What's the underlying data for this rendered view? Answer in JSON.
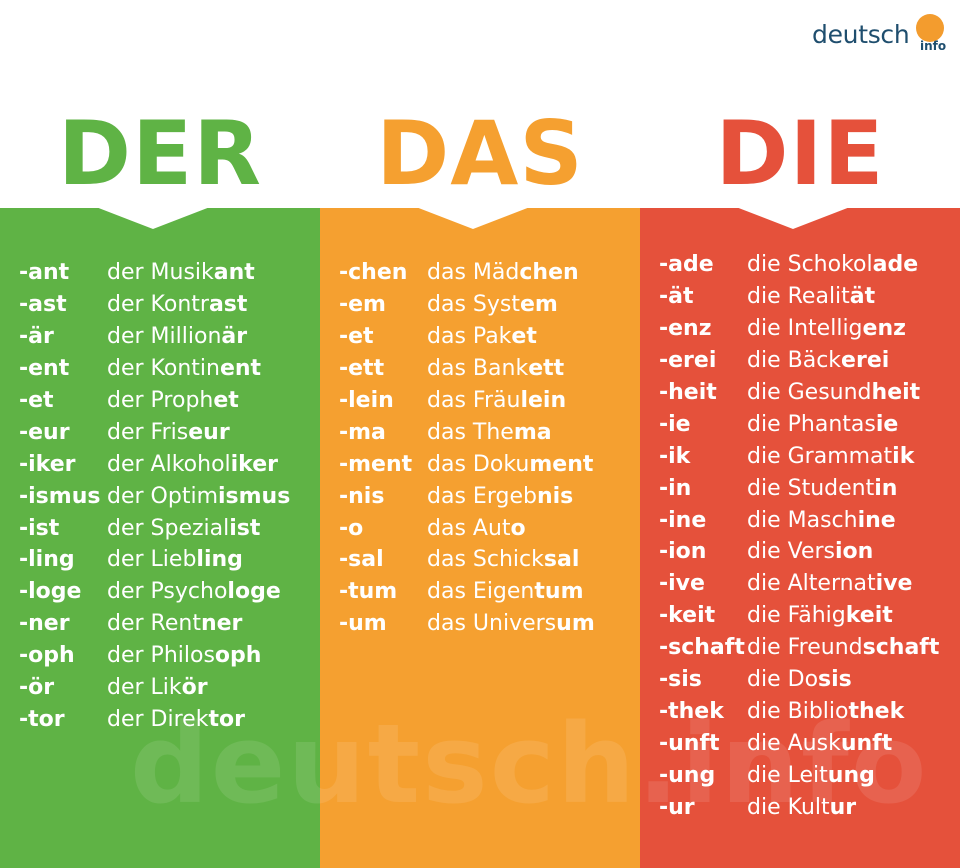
{
  "logo": {
    "main": "deutsch",
    "sub": "info"
  },
  "colors": {
    "der": "#5fb345",
    "das": "#f5a030",
    "die": "#e5513b",
    "logo_text": "#1f4e6e",
    "logo_dot": "#f39c2e"
  },
  "columns": [
    {
      "key": "der",
      "heading": "DER",
      "rows": [
        {
          "suffix": "-ant",
          "article": "der",
          "stem": "Musik",
          "ending": "ant"
        },
        {
          "suffix": "-ast",
          "article": "der",
          "stem": "Kontr",
          "ending": "ast"
        },
        {
          "suffix": "-är",
          "article": "der",
          "stem": "Million",
          "ending": "är"
        },
        {
          "suffix": "-ent",
          "article": "der",
          "stem": "Kontin",
          "ending": "ent"
        },
        {
          "suffix": "-et",
          "article": "der",
          "stem": "Proph",
          "ending": "et"
        },
        {
          "suffix": "-eur",
          "article": "der",
          "stem": "Fris",
          "ending": "eur"
        },
        {
          "suffix": "-iker",
          "article": "der",
          "stem": "Alkohol",
          "ending": "iker"
        },
        {
          "suffix": "-ismus",
          "article": "der",
          "stem": "Optim",
          "ending": "ismus"
        },
        {
          "suffix": "-ist",
          "article": "der",
          "stem": "Spezial",
          "ending": "ist"
        },
        {
          "suffix": "-ling",
          "article": "der",
          "stem": "Lieb",
          "ending": "ling"
        },
        {
          "suffix": "-loge",
          "article": "der",
          "stem": "Psycho",
          "ending": "loge"
        },
        {
          "suffix": "-ner",
          "article": "der",
          "stem": "Rent",
          "ending": "ner"
        },
        {
          "suffix": "-oph",
          "article": "der",
          "stem": "Philos",
          "ending": "oph"
        },
        {
          "suffix": "-ör",
          "article": "der",
          "stem": "Lik",
          "ending": "ör"
        },
        {
          "suffix": "-tor",
          "article": "der",
          "stem": "Direk",
          "ending": "tor"
        }
      ]
    },
    {
      "key": "das",
      "heading": "DAS",
      "rows": [
        {
          "suffix": "-chen",
          "article": "das",
          "stem": "Mäd",
          "ending": "chen"
        },
        {
          "suffix": "-em",
          "article": "das",
          "stem": "Syst",
          "ending": "em"
        },
        {
          "suffix": "-et",
          "article": "das",
          "stem": "Pak",
          "ending": "et"
        },
        {
          "suffix": "-ett",
          "article": "das",
          "stem": "Bank",
          "ending": "ett"
        },
        {
          "suffix": "-lein",
          "article": "das",
          "stem": "Fräu",
          "ending": "lein"
        },
        {
          "suffix": "-ma",
          "article": "das",
          "stem": "The",
          "ending": "ma"
        },
        {
          "suffix": "-ment",
          "article": "das",
          "stem": "Doku",
          "ending": "ment"
        },
        {
          "suffix": "-nis",
          "article": "das",
          "stem": "Ergeb",
          "ending": "nis"
        },
        {
          "suffix": "-o",
          "article": "das",
          "stem": "Aut",
          "ending": "o"
        },
        {
          "suffix": "-sal",
          "article": "das",
          "stem": "Schick",
          "ending": "sal"
        },
        {
          "suffix": "-tum",
          "article": "das",
          "stem": "Eigen",
          "ending": "tum"
        },
        {
          "suffix": "-um",
          "article": "das",
          "stem": "Univers",
          "ending": "um"
        }
      ]
    },
    {
      "key": "die",
      "heading": "DIE",
      "rows": [
        {
          "suffix": "-ade",
          "article": "die",
          "stem": "Schokol",
          "ending": "ade"
        },
        {
          "suffix": "-ät",
          "article": "die",
          "stem": "Realit",
          "ending": "ät"
        },
        {
          "suffix": "-enz",
          "article": "die",
          "stem": "Intellig",
          "ending": "enz"
        },
        {
          "suffix": "-erei",
          "article": "die",
          "stem": "Bäck",
          "ending": "erei"
        },
        {
          "suffix": "-heit",
          "article": "die",
          "stem": "Gesund",
          "ending": "heit"
        },
        {
          "suffix": "-ie",
          "article": "die",
          "stem": "Phantas",
          "ending": "ie"
        },
        {
          "suffix": "-ik",
          "article": "die",
          "stem": "Grammat",
          "ending": "ik"
        },
        {
          "suffix": "-in",
          "article": "die",
          "stem": "Student",
          "ending": "in"
        },
        {
          "suffix": "-ine",
          "article": "die",
          "stem": "Masch",
          "ending": "ine"
        },
        {
          "suffix": "-ion",
          "article": "die",
          "stem": "Vers",
          "ending": "ion"
        },
        {
          "suffix": "-ive",
          "article": "die",
          "stem": "Alternat",
          "ending": "ive"
        },
        {
          "suffix": "-keit",
          "article": "die",
          "stem": "Fähig",
          "ending": "keit"
        },
        {
          "suffix": "-schaft",
          "article": "die",
          "stem": "Freund",
          "ending": "schaft"
        },
        {
          "suffix": "-sis",
          "article": "die",
          "stem": "Do",
          "ending": "sis"
        },
        {
          "suffix": "-thek",
          "article": "die",
          "stem": "Biblio",
          "ending": "thek"
        },
        {
          "suffix": "-unft",
          "article": "die",
          "stem": "Ausk",
          "ending": "unft"
        },
        {
          "suffix": "-ung",
          "article": "die",
          "stem": "Leit",
          "ending": "ung"
        },
        {
          "suffix": "-ur",
          "article": "die",
          "stem": "Kult",
          "ending": "ur"
        }
      ]
    }
  ],
  "watermark": "deutsch.info"
}
